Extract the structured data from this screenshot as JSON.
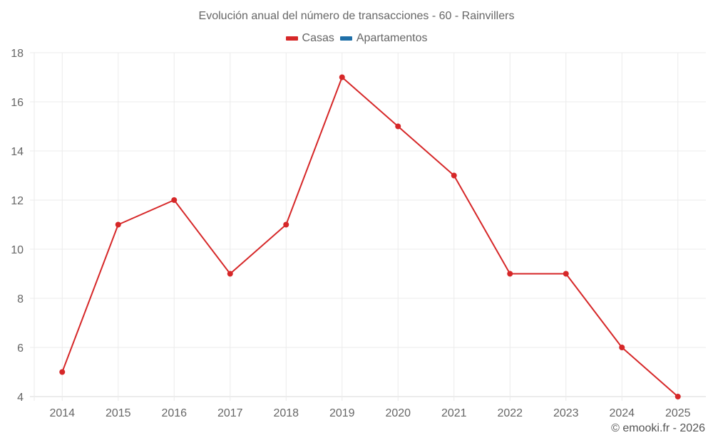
{
  "title": "Evolución anual del número de transacciones - 60 - Rainvillers",
  "legend": [
    {
      "label": "Casas",
      "color": "#d62728"
    },
    {
      "label": "Apartamentos",
      "color": "#1f6fa8"
    }
  ],
  "footer": "© emooki.fr - 2026",
  "colors": {
    "grid": "#ebebeb",
    "axis": "#d9d9d9",
    "line": "#d62728"
  },
  "chart_data": {
    "type": "line",
    "title": "Evolución anual del número de transacciones - 60 - Rainvillers",
    "xlabel": "",
    "ylabel": "",
    "categories": [
      "2014",
      "2015",
      "2016",
      "2017",
      "2018",
      "2019",
      "2020",
      "2021",
      "2022",
      "2023",
      "2024",
      "2025"
    ],
    "series": [
      {
        "name": "Casas",
        "color": "#d62728",
        "values": [
          5,
          11,
          12,
          9,
          11,
          17,
          15,
          13,
          9,
          9,
          6,
          4
        ]
      },
      {
        "name": "Apartamentos",
        "color": "#1f6fa8",
        "values": []
      }
    ],
    "ylim": [
      4,
      18
    ],
    "yticks": [
      4,
      6,
      8,
      10,
      12,
      14,
      16,
      18
    ],
    "grid": true,
    "legend_position": "top"
  }
}
